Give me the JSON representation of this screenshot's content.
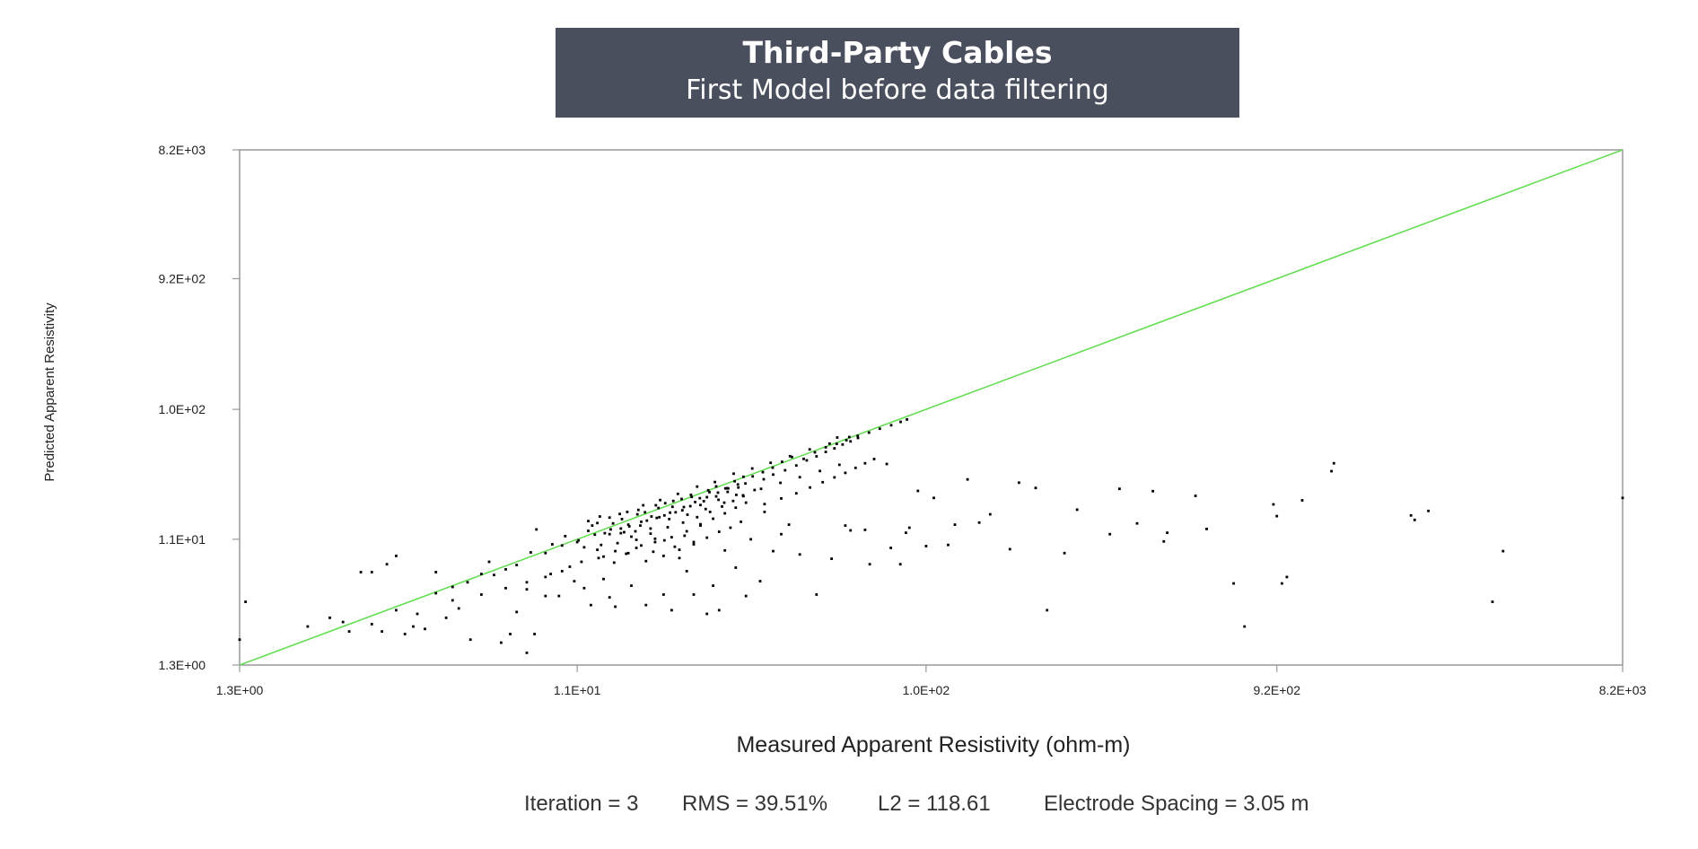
{
  "header": {
    "title": "Third-Party Cables",
    "subtitle": "First Model before data filtering"
  },
  "stats": {
    "iteration": "Iteration = 3",
    "rms": "RMS = 39.51%",
    "l2": "L2 = 118.61",
    "spacing": "Electrode Spacing = 3.05 m"
  },
  "colors": {
    "header_bg": "#4a4f5e",
    "reference_line": "#66dd55",
    "points": "#000000"
  },
  "chart_data": {
    "type": "scatter",
    "xlabel": "Measured Apparent Resistivity (ohm-m)",
    "ylabel": "Predicted Apparent Resistivity",
    "xscale": "log",
    "yscale": "log",
    "xlim": [
      1.3,
      8200
    ],
    "ylim": [
      1.3,
      8200
    ],
    "x_ticks": [
      "1.3E+00",
      "1.1E+01",
      "1.0E+02",
      "9.2E+02",
      "8.2E+03"
    ],
    "x_tick_values": [
      1.3,
      11,
      100,
      920,
      8200
    ],
    "y_ticks": [
      "1.3E+00",
      "1.1E+01",
      "1.0E+02",
      "9.2E+02",
      "8.2E+03"
    ],
    "y_tick_values": [
      1.3,
      11,
      100,
      920,
      8200
    ],
    "reference_line": {
      "label": "",
      "from": [
        1.3,
        1.3
      ],
      "to": [
        8200,
        8200
      ]
    },
    "grid": false,
    "points": [
      [
        1.3,
        2.0
      ],
      [
        1.35,
        3.8
      ],
      [
        2.3,
        2.9
      ],
      [
        2.6,
        2.3
      ],
      [
        2.8,
        6.3
      ],
      [
        3.0,
        6.3
      ],
      [
        3.2,
        2.3
      ],
      [
        3.3,
        7.2
      ],
      [
        3.5,
        8.3
      ],
      [
        3.7,
        2.2
      ],
      [
        3.9,
        2.5
      ],
      [
        4.2,
        2.4
      ],
      [
        4.5,
        6.3
      ],
      [
        4.8,
        2.9
      ],
      [
        5.2,
        3.4
      ],
      [
        5.6,
        2.0
      ],
      [
        6.0,
        6.1
      ],
      [
        6.3,
        7.5
      ],
      [
        6.8,
        1.9
      ],
      [
        7.2,
        2.2
      ],
      [
        7.5,
        3.2
      ],
      [
        8.0,
        4.7
      ],
      [
        8.0,
        1.6
      ],
      [
        8.4,
        2.2
      ],
      [
        8.5,
        13.0
      ],
      [
        9.0,
        4.2
      ],
      [
        9.3,
        6.1
      ],
      [
        9.8,
        4.2
      ],
      [
        10.5,
        6.9
      ],
      [
        10.8,
        5.4
      ],
      [
        11.5,
        4.8
      ],
      [
        12.0,
        3.6
      ],
      [
        12.5,
        9.2
      ],
      [
        13.0,
        5.6
      ],
      [
        13.5,
        4.1
      ],
      [
        14.0,
        3.5
      ],
      [
        14.5,
        12.2
      ],
      [
        15.5,
        5.0
      ],
      [
        16.0,
        10.9
      ],
      [
        17.0,
        3.6
      ],
      [
        18.0,
        11.1
      ],
      [
        19.0,
        4.3
      ],
      [
        20.0,
        3.3
      ],
      [
        21.0,
        8.0
      ],
      [
        22.0,
        6.4
      ],
      [
        23.0,
        4.3
      ],
      [
        24.0,
        13.9
      ],
      [
        25.0,
        3.1
      ],
      [
        26.0,
        5.0
      ],
      [
        27.0,
        3.3
      ],
      [
        28.0,
        9.1
      ],
      [
        30.0,
        6.8
      ],
      [
        32.0,
        4.2
      ],
      [
        33.0,
        11.0
      ],
      [
        35.0,
        5.4
      ],
      [
        36.0,
        17.5
      ],
      [
        38.0,
        9.0
      ],
      [
        40.0,
        12.0
      ],
      [
        42.0,
        14.1
      ],
      [
        45.0,
        8.5
      ],
      [
        50.0,
        4.3
      ],
      [
        55.0,
        7.9
      ],
      [
        57.0,
        62.0
      ],
      [
        60.0,
        13.9
      ],
      [
        62.0,
        12.8
      ],
      [
        68.0,
        12.9
      ],
      [
        70.0,
        7.2
      ],
      [
        78.0,
        39.5
      ],
      [
        80.0,
        9.5
      ],
      [
        85.0,
        7.2
      ],
      [
        88.0,
        12.3
      ],
      [
        90.0,
        13.4
      ],
      [
        95.0,
        25.0
      ],
      [
        100.0,
        9.8
      ],
      [
        105.0,
        22.2
      ],
      [
        115.0,
        10.0
      ],
      [
        120.0,
        14.1
      ],
      [
        130.0,
        30.4
      ],
      [
        140.0,
        14.6
      ],
      [
        150.0,
        16.8
      ],
      [
        170.0,
        9.3
      ],
      [
        180.0,
        28.8
      ],
      [
        200.0,
        26.3
      ],
      [
        215.0,
        3.3
      ],
      [
        240.0,
        8.7
      ],
      [
        260.0,
        18.2
      ],
      [
        320.0,
        12.0
      ],
      [
        340.0,
        25.9
      ],
      [
        380.0,
        14.4
      ],
      [
        420.0,
        24.9
      ],
      [
        450.0,
        10.6
      ],
      [
        460.0,
        12.3
      ],
      [
        550.0,
        23.0
      ],
      [
        590.0,
        13.1
      ],
      [
        700.0,
        5.2
      ],
      [
        750.0,
        2.5
      ],
      [
        900.0,
        19.9
      ],
      [
        920.0,
        16.3
      ],
      [
        950.0,
        5.2
      ],
      [
        980.0,
        5.8
      ],
      [
        1080.0,
        21.3
      ],
      [
        1300.0,
        35.0
      ],
      [
        1320.0,
        40.0
      ],
      [
        2150.0,
        16.5
      ],
      [
        2200.0,
        15.3
      ],
      [
        2400.0,
        17.8
      ],
      [
        3600.0,
        3.8
      ],
      [
        3850.0,
        9.0
      ],
      [
        8200.0,
        22.2
      ],
      [
        8.2,
        8.8
      ],
      [
        9.4,
        10.1
      ],
      [
        10.2,
        11.6
      ],
      [
        11.1,
        10.8
      ],
      [
        11.8,
        12.7
      ],
      [
        12.3,
        11.9
      ],
      [
        13.1,
        12.2
      ],
      [
        13.8,
        14.4
      ],
      [
        14.6,
        15.5
      ],
      [
        15.2,
        14.1
      ],
      [
        16.1,
        16.8
      ],
      [
        16.9,
        17.4
      ],
      [
        17.6,
        16.2
      ],
      [
        18.4,
        18.7
      ],
      [
        19.2,
        20.3
      ],
      [
        20.1,
        19.1
      ],
      [
        21.3,
        21.8
      ],
      [
        22.6,
        23.4
      ],
      [
        23.9,
        22.1
      ],
      [
        25.2,
        25.3
      ],
      [
        26.5,
        27.0
      ],
      [
        28.1,
        26.1
      ],
      [
        29.8,
        29.5
      ],
      [
        31.5,
        31.8
      ],
      [
        33.4,
        32.0
      ],
      [
        35.6,
        34.4
      ],
      [
        37.9,
        37.1
      ],
      [
        40.2,
        41.0
      ],
      [
        42.8,
        44.5
      ],
      [
        46.1,
        43.1
      ],
      [
        49.5,
        48.2
      ],
      [
        53.0,
        52.5
      ],
      [
        56.8,
        55.6
      ],
      [
        60.4,
        59.2
      ],
      [
        64.9,
        63.7
      ],
      [
        69.7,
        67.4
      ],
      [
        74.6,
        71.9
      ],
      [
        80.2,
        76.3
      ],
      [
        85.1,
        80.8
      ],
      [
        88.6,
        84.2
      ],
      [
        11.5,
        9.6
      ],
      [
        12.1,
        13.9
      ],
      [
        12.8,
        10.0
      ],
      [
        13.5,
        15.9
      ],
      [
        14.2,
        10.3
      ],
      [
        15.1,
        17.5
      ],
      [
        15.9,
        12.6
      ],
      [
        16.7,
        19.6
      ],
      [
        17.5,
        13.2
      ],
      [
        18.6,
        21.4
      ],
      [
        19.7,
        15.5
      ],
      [
        20.8,
        23.8
      ],
      [
        22.1,
        16.7
      ],
      [
        23.5,
        26.9
      ],
      [
        24.8,
        18.4
      ],
      [
        26.3,
        29.1
      ],
      [
        27.9,
        20.5
      ],
      [
        29.6,
        33.5
      ],
      [
        31.4,
        23.2
      ],
      [
        33.3,
        36.6
      ],
      [
        35.2,
        25.9
      ],
      [
        37.4,
        40.3
      ],
      [
        39.8,
        28.7
      ],
      [
        42.3,
        45.1
      ],
      [
        45.0,
        31.6
      ],
      [
        47.9,
        50.7
      ],
      [
        51.1,
        35.1
      ],
      [
        54.3,
        55.9
      ],
      [
        57.8,
        39.0
      ],
      [
        61.5,
        62.4
      ],
      [
        13.0,
        8.2
      ],
      [
        14.0,
        9.0
      ],
      [
        15.0,
        8.6
      ],
      [
        16.0,
        9.5
      ],
      [
        17.0,
        7.6
      ],
      [
        18.0,
        10.5
      ],
      [
        19.0,
        8.3
      ],
      [
        20.0,
        11.4
      ],
      [
        21.0,
        9.2
      ],
      [
        22.0,
        12.6
      ],
      [
        23.0,
        10.1
      ],
      [
        24.0,
        14.2
      ],
      [
        25.0,
        11.3
      ],
      [
        26.0,
        15.6
      ],
      [
        27.0,
        12.5
      ],
      [
        28.0,
        17.1
      ],
      [
        29.0,
        13.4
      ],
      [
        30.0,
        18.8
      ],
      [
        31.0,
        14.8
      ],
      [
        32.0,
        20.5
      ],
      [
        12.5,
        14.5
      ],
      [
        13.5,
        12.0
      ],
      [
        14.5,
        13.2
      ],
      [
        15.5,
        11.5
      ],
      [
        16.5,
        14.8
      ],
      [
        17.5,
        12.1
      ],
      [
        18.5,
        16.0
      ],
      [
        19.5,
        13.5
      ],
      [
        20.5,
        17.4
      ],
      [
        21.5,
        14.6
      ],
      [
        22.5,
        19.3
      ],
      [
        23.5,
        16.0
      ],
      [
        24.5,
        21.0
      ],
      [
        25.5,
        17.5
      ],
      [
        26.5,
        22.8
      ],
      [
        27.5,
        19.2
      ],
      [
        28.5,
        24.6
      ],
      [
        29.5,
        21.1
      ],
      [
        30.5,
        26.5
      ],
      [
        31.5,
        22.9
      ],
      [
        6.5,
        6.0
      ],
      [
        7.0,
        6.6
      ],
      [
        7.5,
        7.1
      ],
      [
        9.0,
        8.7
      ],
      [
        10.0,
        9.9
      ],
      [
        11.0,
        10.5
      ],
      [
        4.5,
        4.4
      ],
      [
        5.0,
        4.9
      ],
      [
        5.5,
        5.3
      ],
      [
        3.5,
        3.3
      ],
      [
        11.8,
        15.0
      ],
      [
        12.7,
        16.2
      ],
      [
        13.6,
        13.0
      ],
      [
        14.4,
        16.9
      ],
      [
        15.3,
        13.7
      ],
      [
        16.2,
        18.1
      ],
      [
        17.1,
        15.1
      ],
      [
        18.1,
        19.6
      ],
      [
        19.1,
        16.5
      ],
      [
        20.2,
        21.1
      ],
      [
        21.4,
        18.0
      ],
      [
        22.7,
        22.6
      ],
      [
        24.0,
        19.7
      ],
      [
        25.4,
        24.5
      ],
      [
        26.9,
        21.5
      ],
      [
        28.4,
        26.2
      ],
      [
        30.1,
        23.4
      ],
      [
        31.9,
        28.4
      ],
      [
        33.8,
        25.4
      ],
      [
        35.8,
        30.5
      ],
      [
        11.3,
        7.5
      ],
      [
        12.6,
        8.0
      ],
      [
        13.9,
        7.4
      ],
      [
        15.2,
        8.7
      ],
      [
        16.5,
        9.9
      ],
      [
        17.8,
        8.9
      ],
      [
        19.1,
        10.8
      ],
      [
        20.4,
        9.7
      ],
      [
        21.7,
        11.7
      ],
      [
        23.0,
        10.5
      ],
      [
        38.0,
        33.0
      ],
      [
        41.0,
        35.5
      ],
      [
        44.0,
        38.5
      ],
      [
        47.0,
        42.0
      ],
      [
        50.0,
        45.0
      ],
      [
        53.0,
        48.5
      ],
      [
        56.0,
        51.5
      ],
      [
        59.0,
        55.0
      ],
      [
        62.0,
        58.0
      ],
      [
        65.0,
        61.5
      ],
      [
        14.8,
        12.4
      ],
      [
        16.4,
        13.9
      ],
      [
        18.2,
        15.8
      ],
      [
        19.8,
        17.3
      ],
      [
        21.6,
        19.0
      ],
      [
        23.2,
        20.7
      ],
      [
        25.0,
        22.5
      ],
      [
        26.8,
        24.3
      ],
      [
        28.6,
        26.1
      ],
      [
        30.4,
        27.9
      ],
      [
        36.0,
        20.0
      ],
      [
        40.0,
        22.0
      ],
      [
        44.0,
        24.0
      ],
      [
        48.0,
        26.5
      ],
      [
        52.0,
        29.0
      ],
      [
        56.0,
        31.5
      ],
      [
        60.0,
        34.0
      ],
      [
        64.0,
        37.0
      ],
      [
        68.0,
        40.0
      ],
      [
        72.0,
        43.0
      ],
      [
        6.0,
        4.3
      ],
      [
        7.0,
        4.8
      ],
      [
        8.0,
        5.3
      ],
      [
        9.0,
        5.8
      ],
      [
        10.0,
        6.4
      ],
      [
        5.0,
        3.9
      ],
      [
        4.0,
        3.1
      ],
      [
        3.0,
        2.6
      ],
      [
        2.5,
        2.7
      ],
      [
        2.0,
        2.5
      ]
    ]
  }
}
